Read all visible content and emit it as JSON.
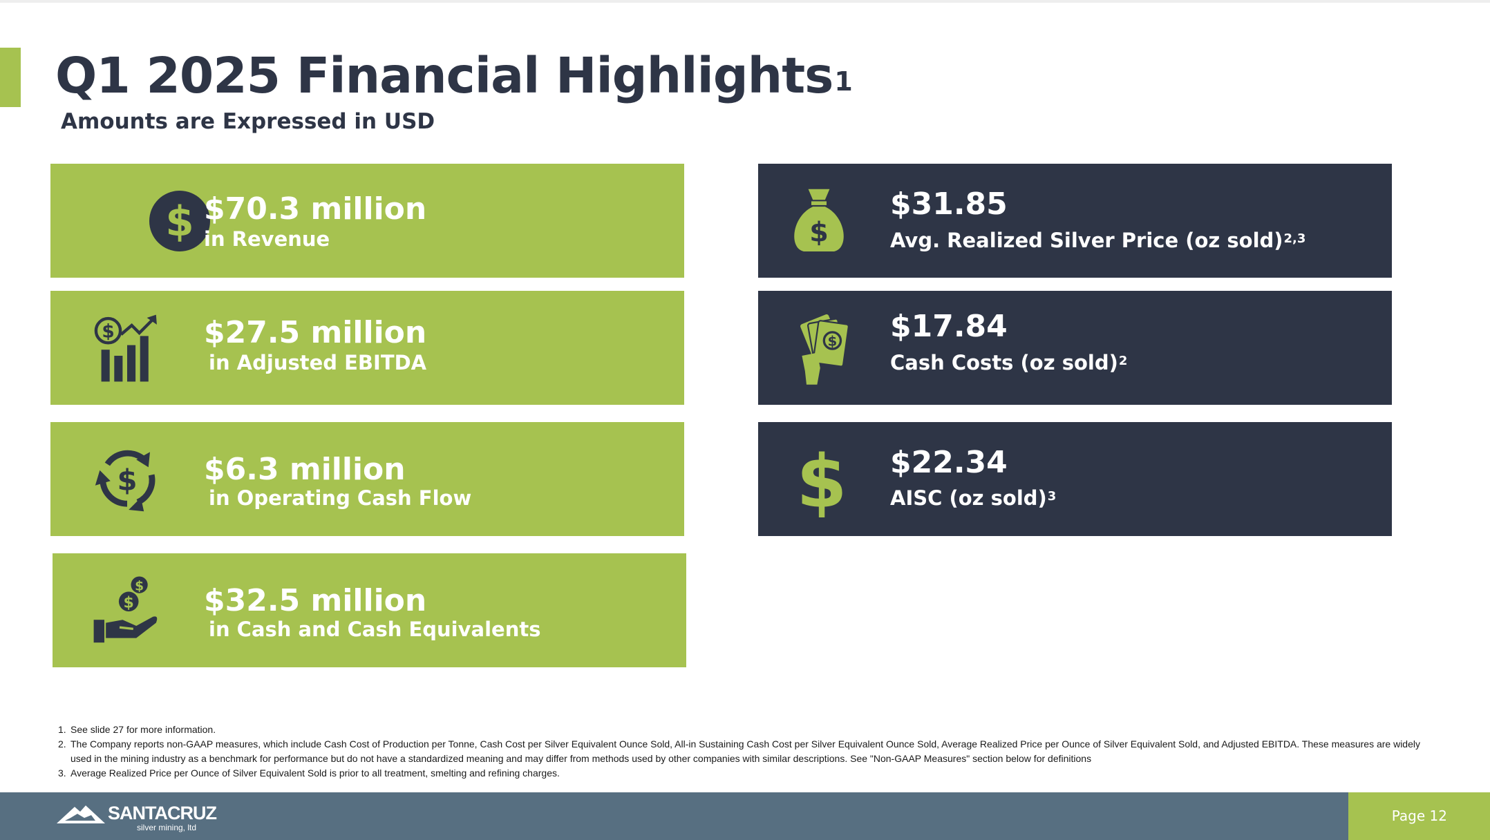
{
  "slide": {
    "title": "Q1 2025 Financial Highlights",
    "title_sup": "1",
    "subtitle": "Amounts are Expressed in USD"
  },
  "left_cards": [
    {
      "value": "$70.3 million",
      "label": "in Revenue",
      "icon": "dollar-coin-icon"
    },
    {
      "value": "$27.5 million",
      "label": "in Adjusted EBITDA",
      "icon": "growth-chart-icon"
    },
    {
      "value": "$6.3 million",
      "label": "in Operating Cash Flow",
      "icon": "cash-cycle-icon"
    },
    {
      "value": "$32.5 million",
      "label": "in Cash and Cash Equivalents",
      "icon": "coins-hand-icon"
    }
  ],
  "right_cards": [
    {
      "value": "$31.85",
      "label": "Avg. Realized Silver Price (oz sold)",
      "sup": "2,3",
      "icon": "money-bag-icon"
    },
    {
      "value": "$17.84",
      "label": "Cash Costs (oz sold)",
      "sup": "2",
      "icon": "cash-hand-icon"
    },
    {
      "value": "$22.34",
      "label": "AISC (oz sold)",
      "sup": "3",
      "icon": "dollar-sign-icon"
    }
  ],
  "footnotes": [
    {
      "num": "1.",
      "text": "See slide 27 for more information."
    },
    {
      "num": "2.",
      "text": "The Company reports non-GAAP measures, which include Cash Cost of Production per Tonne, Cash Cost per Silver Equivalent Ounce Sold, All-in Sustaining Cash Cost per Silver Equivalent Ounce Sold, Average Realized Price per Ounce of Silver Equivalent Sold, and Adjusted EBITDA. These measures are widely used in the mining industry as a benchmark for performance but do not have a standardized meaning and may differ from methods used by other companies with similar descriptions. See \"Non-GAAP Measures\" section below for definitions"
    },
    {
      "num": "3.",
      "text": "Average Realized Price per Ounce of Silver Equivalent Sold is prior to all treatment, smelting and refining charges."
    }
  ],
  "footer": {
    "logo_name": "SANTACRUZ",
    "logo_tagline": "silver mining, ltd",
    "page": "Page 12"
  },
  "colors": {
    "green": "#a6c250",
    "navy": "#2e3546",
    "footer_slate": "#576f81"
  }
}
